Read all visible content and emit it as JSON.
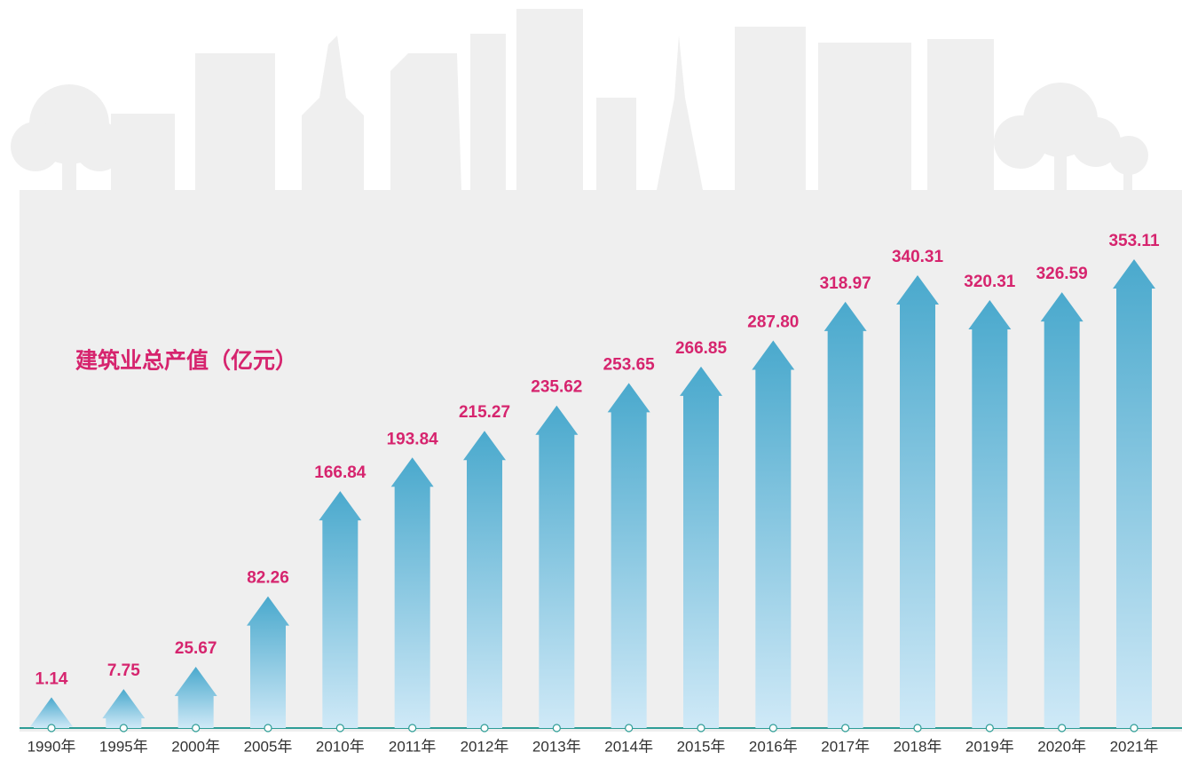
{
  "chart_data": {
    "type": "arrow-bar",
    "title": "建筑业总产值（亿元）",
    "categories": [
      "1990年",
      "1995年",
      "2000年",
      "2005年",
      "2010年",
      "2011年",
      "2012年",
      "2013年",
      "2014年",
      "2015年",
      "2016年",
      "2017年",
      "2018年",
      "2019年",
      "2020年",
      "2021年"
    ],
    "values": [
      1.14,
      7.75,
      25.67,
      82.26,
      166.84,
      193.84,
      215.27,
      235.62,
      253.65,
      266.85,
      287.8,
      318.97,
      340.31,
      320.31,
      326.59,
      353.11
    ],
    "value_labels": [
      "1.14",
      "7.75",
      "25.67",
      "82.26",
      "166.84",
      "193.84",
      "215.27",
      "235.62",
      "253.65",
      "266.85",
      "287.80",
      "318.97",
      "340.31",
      "320.31",
      "326.59",
      "353.11"
    ],
    "color": "#4aa9cd"
  }
}
